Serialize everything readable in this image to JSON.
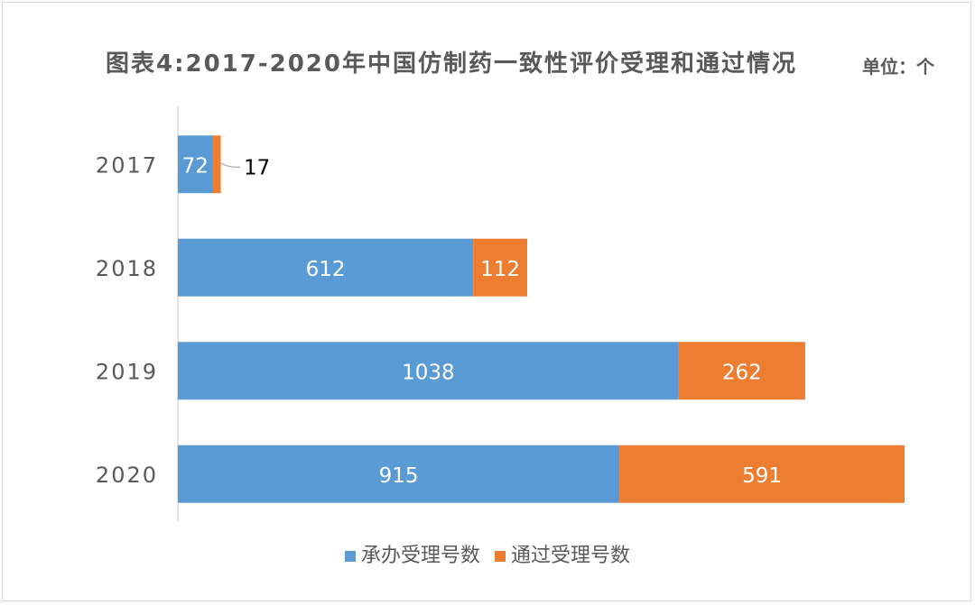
{
  "chart_data": {
    "type": "bar",
    "orientation": "horizontal",
    "stacked": true,
    "title": "图表4:2017-2020年中国仿制药一致性评价受理和通过情况",
    "unit": "单位：个",
    "categories": [
      "2017",
      "2018",
      "2019",
      "2020"
    ],
    "series": [
      {
        "name": "承办受理号数",
        "color": "#5B9BD5",
        "values": [
          72,
          612,
          1038,
          915
        ]
      },
      {
        "name": "通过受理号数",
        "color": "#ED7D31",
        "values": [
          17,
          112,
          262,
          591
        ]
      }
    ],
    "xlim": [
      0,
      1506
    ],
    "grid": false,
    "legend_position": "bottom"
  }
}
